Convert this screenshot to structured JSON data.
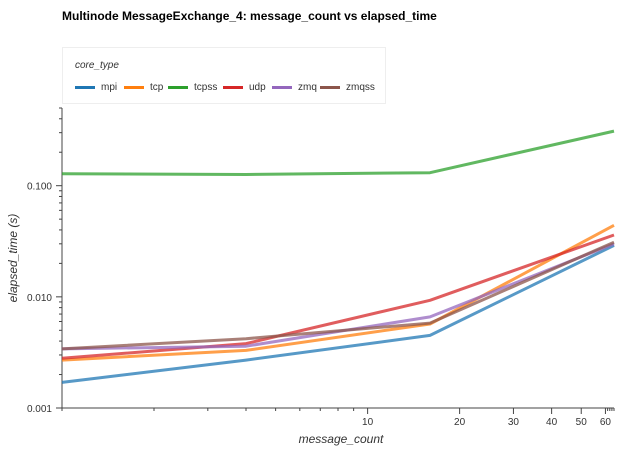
{
  "chart_data": {
    "type": "line",
    "title": "Multinode MessageExchange_4: message_count vs elapsed_time",
    "xlabel": "message_count",
    "ylabel": "elapsed_time (s)",
    "x_scale": "log",
    "y_scale": "log",
    "xlim": [
      1,
      64
    ],
    "ylim": [
      0.001,
      0.5
    ],
    "x_tick_labels": [
      {
        "value": 10,
        "label": "10"
      },
      {
        "value": 20,
        "label": "20"
      },
      {
        "value": 30,
        "label": "30"
      },
      {
        "value": 40,
        "label": "40"
      },
      {
        "value": 50,
        "label": "50"
      },
      {
        "value": 60,
        "label": "60"
      }
    ],
    "y_tick_labels": [
      {
        "value": 0.001,
        "label": "0.001"
      },
      {
        "value": 0.01,
        "label": "0.010"
      },
      {
        "value": 0.1,
        "label": "0.100"
      }
    ],
    "legend": {
      "title": "core_type",
      "placement": "top-left"
    },
    "x": [
      1,
      4,
      16,
      64
    ],
    "series": [
      {
        "name": "mpi",
        "color": "#1f77b4",
        "values": [
          0.0017,
          0.0027,
          0.0045,
          0.029
        ]
      },
      {
        "name": "tcp",
        "color": "#ff7f0e",
        "values": [
          0.0027,
          0.0033,
          0.0057,
          0.044
        ]
      },
      {
        "name": "tcpss",
        "color": "#2ca02c",
        "values": [
          0.128,
          0.126,
          0.131,
          0.31
        ]
      },
      {
        "name": "udp",
        "color": "#d62728",
        "values": [
          0.0028,
          0.0038,
          0.0093,
          0.036
        ]
      },
      {
        "name": "zmq",
        "color": "#9467bd",
        "values": [
          0.0034,
          0.0036,
          0.0066,
          0.03
        ]
      },
      {
        "name": "zmqss",
        "color": "#8c564b",
        "values": [
          0.0034,
          0.0042,
          0.0058,
          0.031
        ]
      }
    ]
  }
}
